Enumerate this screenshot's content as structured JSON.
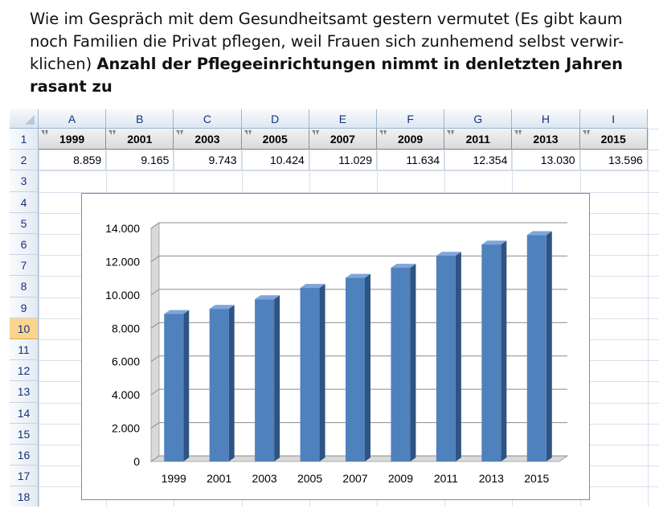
{
  "caption": {
    "normal": "Wie im Gespräch mit dem Gesundheitsamt gestern vermutet (Es gibt kaum noch Familien die Privat pflegen, weil Frauen sich zunhemend selbst verwir-klichen)",
    "bold": "Anzahl der Pflegeeinrichtungen nimmt in denletzten Jahren rasant zu"
  },
  "sheet": {
    "columns": [
      "A",
      "B",
      "C",
      "D",
      "E",
      "F",
      "G",
      "H",
      "I"
    ],
    "rows": [
      "1",
      "2",
      "3",
      "4",
      "5",
      "6",
      "7",
      "8",
      "9",
      "10",
      "11",
      "12",
      "13",
      "14",
      "15",
      "16",
      "17",
      "18"
    ],
    "active_row": "10",
    "header_row": [
      "1999",
      "2001",
      "2003",
      "2005",
      "2007",
      "2009",
      "2011",
      "2013",
      "2015"
    ],
    "value_row": [
      "8.859",
      "9.165",
      "9.743",
      "10.424",
      "11.029",
      "11.634",
      "12.354",
      "13.030",
      "13.596"
    ]
  },
  "chart_data": {
    "type": "bar",
    "categories": [
      "1999",
      "2001",
      "2003",
      "2005",
      "2007",
      "2009",
      "2011",
      "2013",
      "2015"
    ],
    "values": [
      8859,
      9165,
      9743,
      10424,
      11029,
      11634,
      12354,
      13030,
      13596
    ],
    "ylim": [
      0,
      14000
    ],
    "yticks": [
      "0",
      "2.000",
      "4.000",
      "6.000",
      "8.000",
      "10.000",
      "12.000",
      "14.000"
    ],
    "title": "",
    "xlabel": "",
    "ylabel": "",
    "grid": true,
    "legend": "none",
    "colors": {
      "front": "#4f81bd",
      "side": "#2e5483",
      "top": "#7ea6d8",
      "wall": "#d9d9d9"
    }
  }
}
